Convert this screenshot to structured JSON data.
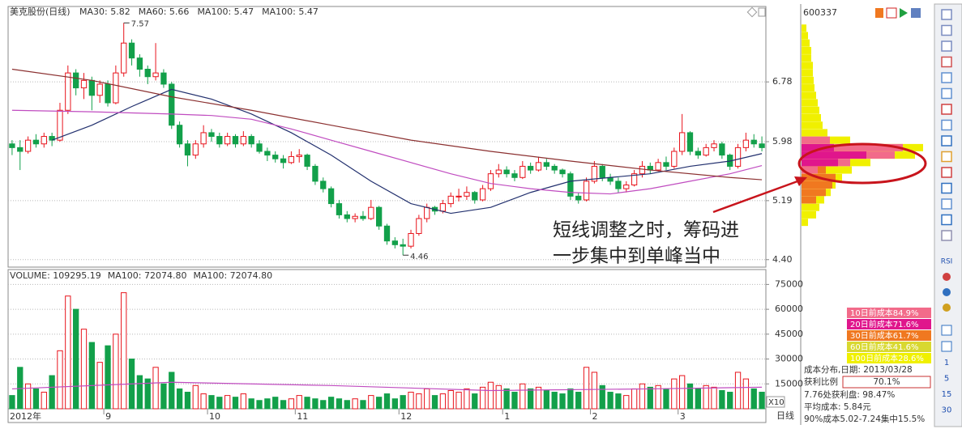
{
  "chart_data": {
    "type": "candlestick",
    "title": "美克股份(日线)",
    "categories": [
      "2012年",
      null,
      null,
      null,
      null,
      null,
      null,
      null,
      null,
      null,
      null,
      null,
      "9",
      null,
      null,
      null,
      null,
      null,
      null,
      null,
      null,
      null,
      null,
      null,
      null,
      "10",
      null,
      null,
      null,
      null,
      null,
      null,
      null,
      null,
      null,
      null,
      "11",
      null,
      null,
      null,
      null,
      null,
      null,
      null,
      null,
      null,
      null,
      null,
      null,
      "12",
      null,
      null,
      null,
      null,
      null,
      null,
      null,
      null,
      null,
      null,
      null,
      null,
      "1",
      null,
      null,
      null,
      null,
      null,
      null,
      null,
      null,
      null,
      null,
      "2",
      null,
      null,
      null,
      null,
      null,
      null,
      null,
      null,
      null,
      null,
      "3",
      null,
      null,
      null,
      null,
      null,
      null,
      null,
      null,
      null,
      null
    ],
    "candles": [
      [
        5.95,
        6.0,
        5.8,
        5.9
      ],
      [
        5.9,
        6.0,
        5.6,
        5.85
      ],
      [
        5.85,
        6.05,
        5.82,
        6.0
      ],
      [
        6.0,
        6.08,
        5.9,
        5.95
      ],
      [
        5.95,
        6.1,
        5.9,
        6.05
      ],
      [
        6.05,
        6.1,
        5.92,
        6.0
      ],
      [
        6.0,
        6.5,
        5.98,
        6.4
      ],
      [
        6.4,
        7.0,
        6.35,
        6.9
      ],
      [
        6.9,
        6.95,
        6.6,
        6.7
      ],
      [
        6.7,
        6.9,
        6.55,
        6.8
      ],
      [
        6.8,
        6.85,
        6.4,
        6.6
      ],
      [
        6.6,
        6.8,
        6.5,
        6.75
      ],
      [
        6.75,
        6.8,
        6.45,
        6.5
      ],
      [
        6.5,
        7.0,
        6.48,
        6.9
      ],
      [
        6.9,
        7.57,
        6.85,
        7.3
      ],
      [
        7.3,
        7.35,
        7.0,
        7.1
      ],
      [
        7.1,
        7.15,
        6.85,
        6.95
      ],
      [
        6.95,
        7.0,
        6.75,
        6.85
      ],
      [
        6.85,
        7.3,
        6.8,
        6.9
      ],
      [
        6.9,
        6.95,
        6.7,
        6.75
      ],
      [
        6.75,
        6.78,
        6.15,
        6.2
      ],
      [
        6.2,
        6.25,
        5.9,
        5.95
      ],
      [
        5.95,
        6.0,
        5.65,
        5.8
      ],
      [
        5.8,
        6.0,
        5.75,
        5.95
      ],
      [
        5.95,
        6.2,
        5.9,
        6.1
      ],
      [
        6.1,
        6.15,
        5.98,
        6.05
      ],
      [
        6.05,
        6.1,
        5.9,
        5.95
      ],
      [
        5.95,
        6.1,
        5.92,
        6.05
      ],
      [
        6.05,
        6.08,
        5.9,
        5.95
      ],
      [
        5.95,
        6.12,
        5.92,
        6.05
      ],
      [
        6.05,
        6.08,
        5.9,
        5.95
      ],
      [
        5.95,
        6.0,
        5.82,
        5.85
      ],
      [
        5.85,
        5.9,
        5.72,
        5.8
      ],
      [
        5.8,
        5.85,
        5.7,
        5.75
      ],
      [
        5.75,
        5.8,
        5.62,
        5.7
      ],
      [
        5.7,
        5.85,
        5.68,
        5.78
      ],
      [
        5.78,
        5.88,
        5.7,
        5.8
      ],
      [
        5.8,
        5.82,
        5.6,
        5.65
      ],
      [
        5.65,
        5.68,
        5.4,
        5.45
      ],
      [
        5.45,
        5.5,
        5.3,
        5.35
      ],
      [
        5.35,
        5.38,
        5.1,
        5.15
      ],
      [
        5.15,
        5.2,
        4.95,
        5.0
      ],
      [
        5.0,
        5.05,
        4.9,
        4.95
      ],
      [
        4.95,
        5.02,
        4.9,
        4.98
      ],
      [
        4.98,
        5.05,
        4.92,
        4.95
      ],
      [
        4.95,
        5.2,
        4.93,
        5.1
      ],
      [
        5.1,
        5.12,
        4.8,
        4.85
      ],
      [
        4.85,
        4.88,
        4.6,
        4.65
      ],
      [
        4.65,
        4.7,
        4.55,
        4.6
      ],
      [
        4.6,
        4.68,
        4.46,
        4.58
      ],
      [
        4.58,
        4.8,
        4.55,
        4.75
      ],
      [
        4.75,
        5.0,
        4.72,
        4.95
      ],
      [
        4.95,
        5.15,
        4.9,
        5.1
      ],
      [
        5.1,
        5.12,
        5.0,
        5.05
      ],
      [
        5.05,
        5.2,
        5.02,
        5.15
      ],
      [
        5.15,
        5.3,
        5.1,
        5.25
      ],
      [
        5.25,
        5.35,
        5.18,
        5.25
      ],
      [
        5.25,
        5.38,
        5.2,
        5.3
      ],
      [
        5.3,
        5.32,
        5.15,
        5.2
      ],
      [
        5.2,
        5.4,
        5.18,
        5.35
      ],
      [
        5.35,
        5.6,
        5.32,
        5.55
      ],
      [
        5.55,
        5.68,
        5.5,
        5.6
      ],
      [
        5.6,
        5.65,
        5.5,
        5.55
      ],
      [
        5.55,
        5.6,
        5.45,
        5.5
      ],
      [
        5.5,
        5.72,
        5.48,
        5.65
      ],
      [
        5.65,
        5.7,
        5.55,
        5.6
      ],
      [
        5.6,
        5.78,
        5.58,
        5.7
      ],
      [
        5.7,
        5.75,
        5.6,
        5.65
      ],
      [
        5.65,
        5.68,
        5.55,
        5.6
      ],
      [
        5.6,
        5.62,
        5.5,
        5.55
      ],
      [
        5.55,
        5.58,
        5.2,
        5.25
      ],
      [
        5.25,
        5.3,
        5.15,
        5.2
      ],
      [
        5.2,
        5.5,
        5.18,
        5.45
      ],
      [
        5.45,
        5.72,
        5.42,
        5.65
      ],
      [
        5.65,
        5.68,
        5.45,
        5.5
      ],
      [
        5.5,
        5.55,
        5.4,
        5.45
      ],
      [
        5.45,
        5.5,
        5.3,
        5.35
      ],
      [
        5.35,
        5.45,
        5.3,
        5.4
      ],
      [
        5.4,
        5.6,
        5.38,
        5.55
      ],
      [
        5.55,
        5.72,
        5.5,
        5.65
      ],
      [
        5.65,
        5.7,
        5.55,
        5.6
      ],
      [
        5.6,
        5.75,
        5.58,
        5.7
      ],
      [
        5.7,
        5.78,
        5.6,
        5.65
      ],
      [
        5.65,
        5.9,
        5.62,
        5.85
      ],
      [
        5.85,
        6.35,
        5.8,
        6.1
      ],
      [
        6.1,
        6.12,
        5.8,
        5.85
      ],
      [
        5.85,
        5.9,
        5.75,
        5.8
      ],
      [
        5.8,
        5.95,
        5.78,
        5.9
      ],
      [
        5.9,
        6.0,
        5.85,
        5.95
      ],
      [
        5.95,
        5.98,
        5.75,
        5.8
      ],
      [
        5.8,
        5.82,
        5.6,
        5.65
      ],
      [
        5.65,
        5.95,
        5.62,
        5.9
      ],
      [
        5.9,
        6.1,
        5.85,
        6.0
      ],
      [
        6.0,
        6.08,
        5.9,
        5.95
      ],
      [
        5.95,
        6.05,
        5.85,
        5.9
      ]
    ],
    "up_color": "#e8141c",
    "down_color": "#12a04a",
    "ylim": [
      4.3,
      7.79
    ],
    "yticks": [
      {
        "value": 4.4,
        "label": "4.40"
      },
      {
        "value": 5.19,
        "label": "5.19"
      },
      {
        "value": 5.98,
        "label": "5.98"
      },
      {
        "value": 6.78,
        "label": "6.78"
      }
    ],
    "grid": true,
    "ma_lines": [
      {
        "label": "MA30: 5.82",
        "color": "#22306e",
        "x": [
          5,
          10,
          15,
          20,
          25,
          30,
          35,
          40,
          45,
          50,
          55,
          60,
          65,
          70,
          75,
          80,
          85,
          90,
          94
        ],
        "values": [
          6.0,
          6.2,
          6.45,
          6.68,
          6.55,
          6.35,
          6.1,
          5.8,
          5.45,
          5.15,
          5.02,
          5.1,
          5.3,
          5.45,
          5.5,
          5.55,
          5.65,
          5.72,
          5.82
        ]
      },
      {
        "label": "MA60: 5.66",
        "color": "#c04cc0",
        "x": [
          0,
          10,
          20,
          25,
          30,
          35,
          40,
          45,
          50,
          55,
          60,
          65,
          70,
          75,
          80,
          85,
          90,
          94
        ],
        "values": [
          6.4,
          6.38,
          6.35,
          6.33,
          6.28,
          6.15,
          6.0,
          5.85,
          5.7,
          5.55,
          5.42,
          5.35,
          5.3,
          5.28,
          5.35,
          5.45,
          5.55,
          5.66
        ]
      },
      {
        "label": "MA100: 5.47",
        "color": "#8c8c8c"
      },
      {
        "label": "MA100: 5.47",
        "color": "#8b3030",
        "x": [
          0,
          10,
          20,
          30,
          40,
          50,
          60,
          70,
          80,
          90,
          94
        ],
        "values": [
          6.95,
          6.8,
          6.58,
          6.4,
          6.2,
          6.0,
          5.85,
          5.72,
          5.6,
          5.5,
          5.47
        ]
      }
    ],
    "annotations": [
      {
        "label": "7.57",
        "value": 7.57,
        "x": 14
      },
      {
        "label": "4.46",
        "value": 4.46,
        "x": 49
      }
    ],
    "period_label": "日线",
    "volume": {
      "values": [
        8000,
        25000,
        15000,
        12000,
        10000,
        20000,
        35000,
        68000,
        60000,
        48000,
        40000,
        28000,
        38000,
        45000,
        70000,
        30000,
        20000,
        18000,
        25000,
        15000,
        22000,
        12000,
        10000,
        14000,
        9000,
        8000,
        7000,
        8000,
        7000,
        9000,
        6000,
        5000,
        6000,
        7000,
        5000,
        6000,
        8000,
        7000,
        6000,
        5000,
        7000,
        6000,
        5000,
        6000,
        5000,
        8000,
        7000,
        9000,
        6000,
        8000,
        10000,
        9000,
        12000,
        8000,
        9000,
        11000,
        10000,
        12000,
        9000,
        13000,
        16000,
        14000,
        12000,
        10000,
        15000,
        12000,
        13000,
        11000,
        10000,
        9000,
        12000,
        10000,
        25000,
        22000,
        14000,
        10000,
        9000,
        8000,
        12000,
        15000,
        13000,
        14000,
        12000,
        18000,
        20000,
        15000,
        12000,
        14000,
        13000,
        11000,
        10000,
        22000,
        18000,
        12000,
        10000
      ],
      "ylim": [
        0,
        83000
      ],
      "yticks": [
        15000,
        30000,
        45000,
        60000,
        75000
      ],
      "scale_label": "X10",
      "legend": [
        {
          "label": "VOLUME: 109295.19",
          "color": "#333333"
        },
        {
          "label": "MA100: 72074.80",
          "color": "#8c8c8c"
        },
        {
          "label": "MA100: 72074.80",
          "color": "#c04cc0",
          "x": [
            0,
            20,
            40,
            60,
            80,
            94
          ],
          "values": [
            12000,
            16000,
            14000,
            11000,
            12000,
            13000
          ]
        }
      ]
    }
  },
  "chip_panel": {
    "code": "600337",
    "prices": [
      4.9,
      5.0,
      5.1,
      5.2,
      5.3,
      5.4,
      5.5,
      5.6,
      5.7,
      5.8,
      5.9,
      6.0,
      6.1,
      6.2,
      6.3,
      6.4,
      6.5,
      6.6,
      6.7,
      6.8,
      6.9,
      7.0,
      7.1,
      7.2,
      7.3,
      7.4,
      7.5
    ],
    "series": [
      {
        "color": "#f0f000",
        "values": [
          8,
          18,
          22,
          28,
          36,
          42,
          50,
          62,
          85,
          140,
          150,
          60,
          32,
          26,
          24,
          22,
          20,
          18,
          16,
          15,
          14,
          14,
          12,
          12,
          10,
          8,
          6
        ]
      },
      {
        "color": "#f07820",
        "values": [
          null,
          null,
          null,
          18,
          30,
          38,
          42,
          30,
          null,
          null,
          null,
          null,
          null,
          null,
          null,
          null,
          null,
          null,
          null,
          null,
          null,
          null,
          null,
          null,
          null,
          null,
          null
        ]
      },
      {
        "color": "#f26b8a",
        "values": [
          null,
          null,
          null,
          null,
          null,
          null,
          null,
          20,
          60,
          115,
          125,
          35,
          null,
          null,
          null,
          null,
          null,
          null,
          null,
          null,
          null,
          null,
          null,
          null,
          null,
          null,
          null
        ]
      },
      {
        "color": "#e0168c",
        "values": [
          null,
          null,
          null,
          null,
          null,
          null,
          null,
          null,
          45,
          80,
          40,
          null,
          null,
          null,
          null,
          null,
          null,
          null,
          null,
          null,
          null,
          null,
          null,
          null,
          null,
          null,
          null
        ]
      }
    ],
    "legend": [
      {
        "label": "10日前成本84.9%",
        "color": "#f26b8a"
      },
      {
        "label": "20日前成本71.6%",
        "color": "#e0168c"
      },
      {
        "label": "30日前成本61.7%",
        "color": "#f07820"
      },
      {
        "label": "60日前成本41.6%",
        "color": "#d8d830"
      },
      {
        "label": "100日前成本28.6%",
        "color": "#f0f000"
      }
    ],
    "date_line": "成本分布,日期: 2013/03/28",
    "profit_label": "获利比例",
    "profit_value": "70.1%",
    "info": [
      "7.76处获利盘: 98.47%",
      "平均成本: 5.84元",
      "90%成本5.02-7.24集中15.5%"
    ]
  },
  "callout": [
    "短线调整之时，筹码进",
    "一步集中到单峰当中"
  ],
  "toolbar": {
    "indicator": "RSI",
    "periods": [
      "1",
      "5",
      "15",
      "30"
    ]
  }
}
